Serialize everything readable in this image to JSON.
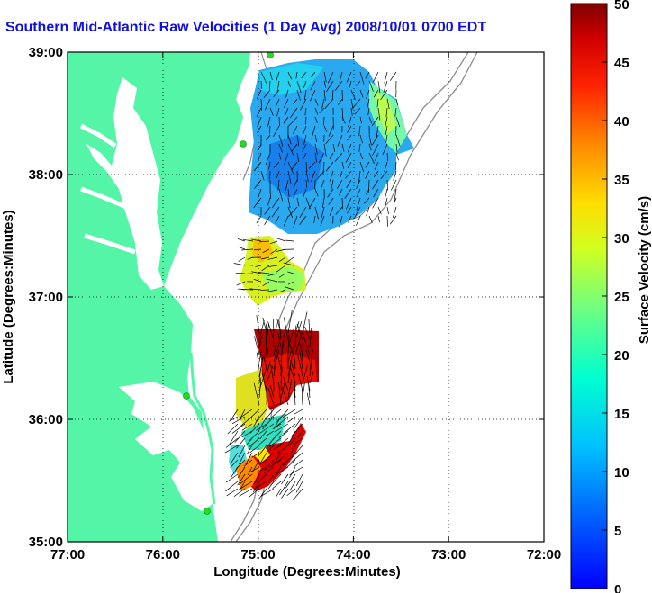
{
  "title": "Southern Mid-Atlantic Raw Velocities (1 Day Avg) 2008/10/01 0700 EDT",
  "xlabel": "Longitude (Degrees:Minutes)",
  "ylabel": "Latitude (Degrees:Minutes)",
  "x_ticks": [
    "77:00",
    "76:00",
    "75:00",
    "74:00",
    "73:00",
    "72:00"
  ],
  "y_ticks": [
    "39:00",
    "38:00",
    "37:00",
    "36:00",
    "35:00"
  ],
  "colorbar": {
    "label": "Surface Velocity (cm/s)",
    "ticks": [
      "0",
      "5",
      "10",
      "15",
      "20",
      "25",
      "30",
      "35",
      "40",
      "45",
      "50"
    ],
    "min": 0,
    "max": 50,
    "colormap": "jet"
  },
  "colors": {
    "land": "#55f5a8",
    "title": "#1010e0",
    "isobath": "#8c8c8c",
    "station": "#22dd22"
  },
  "chart_data": {
    "type": "heatmap",
    "x_range": [
      -77,
      -72
    ],
    "y_range": [
      35,
      39
    ],
    "grid": true,
    "regions": [
      {
        "name_hint": "",
        "lon_range": [
          -75.0,
          -73.5
        ],
        "lat_range": [
          37.5,
          38.95
        ],
        "speed_cm_s": [
          5,
          20
        ]
      },
      {
        "name_hint": "",
        "lon_range": [
          -75.2,
          -74.6
        ],
        "lat_range": [
          36.95,
          37.5
        ],
        "speed_cm_s": [
          20,
          30
        ]
      },
      {
        "name_hint": "",
        "lon_range": [
          -74.85,
          -74.4
        ],
        "lat_range": [
          36.0,
          36.55
        ],
        "speed_cm_s": [
          40,
          50
        ]
      },
      {
        "name_hint": "",
        "lon_range": [
          -75.3,
          -74.6
        ],
        "lat_range": [
          35.3,
          36.0
        ],
        "speed_cm_s": [
          20,
          45
        ]
      }
    ]
  }
}
